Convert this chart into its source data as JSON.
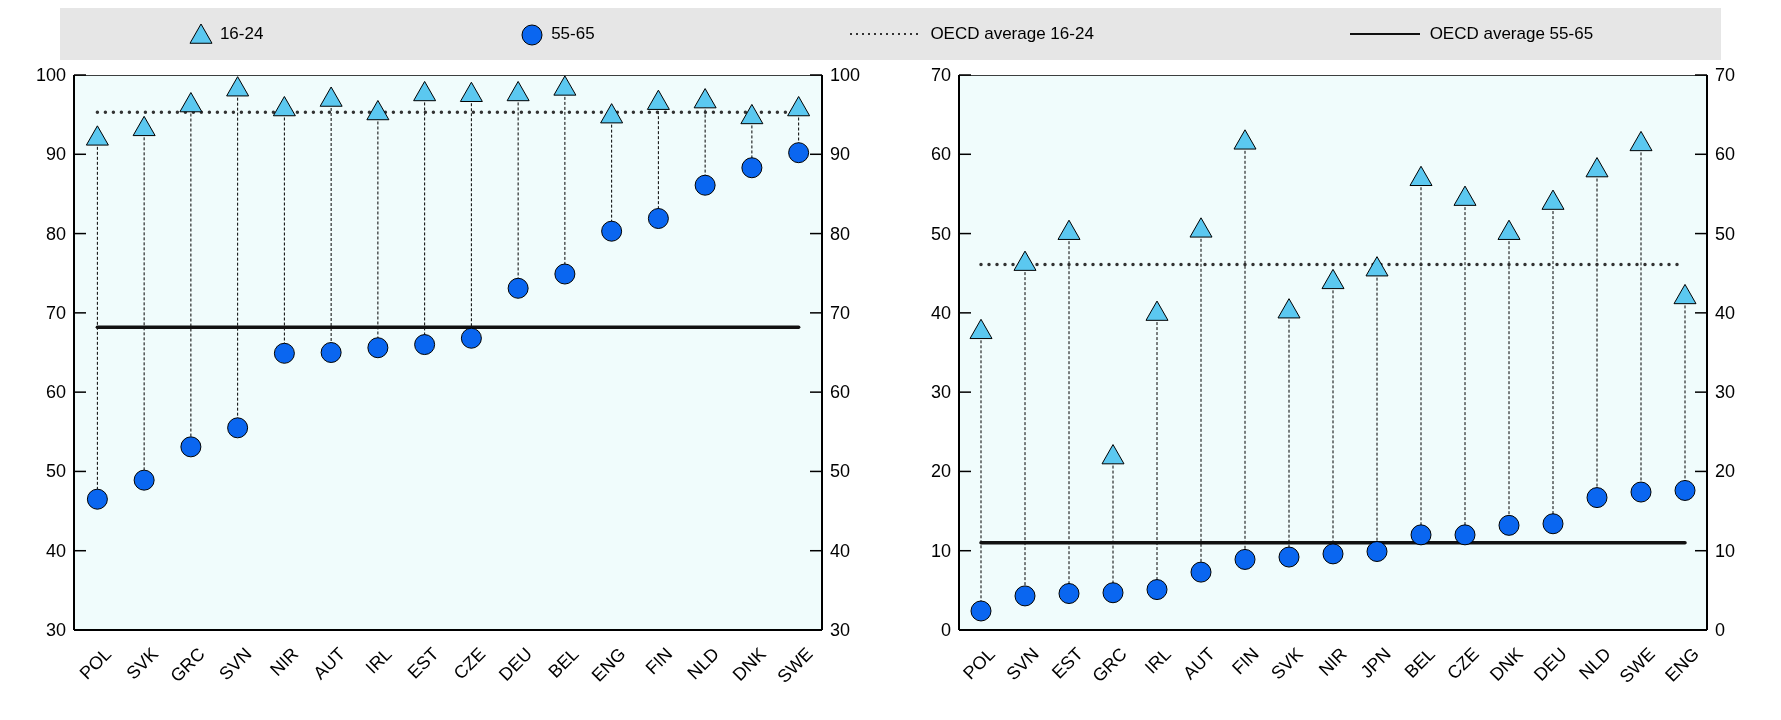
{
  "chart_data": [
    {
      "type": "scatter",
      "legend": "top",
      "grid": false,
      "categories": [
        "POL",
        "SVK",
        "GRC",
        "SVN",
        "NIR",
        "AUT",
        "IRL",
        "EST",
        "CZE",
        "DEU",
        "BEL",
        "ENG",
        "FIN",
        "NLD",
        "DNK",
        "SWE"
      ],
      "series": [
        {
          "name": "16-24",
          "color": "#5bc8f0",
          "marker": "triangle",
          "values": [
            92.2,
            93.4,
            96.4,
            98.4,
            95.9,
            97.1,
            95.4,
            97.8,
            97.7,
            97.8,
            98.5,
            95.0,
            96.7,
            96.9,
            94.9,
            95.9
          ]
        },
        {
          "name": "55-65",
          "color": "#0a66f0",
          "marker": "circle",
          "values": [
            46.5,
            48.9,
            53.1,
            55.5,
            64.9,
            65.0,
            65.6,
            66.0,
            66.8,
            73.1,
            74.9,
            80.3,
            81.9,
            86.1,
            88.3,
            90.2
          ]
        }
      ],
      "ref_lines": [
        {
          "axis": "y",
          "value": 95.3,
          "label": "OECD average 16-24",
          "color": "#333333",
          "line_style": "dotted"
        },
        {
          "axis": "y",
          "value": 68.2,
          "label": "OECD average 55-65",
          "color": "#111111",
          "line_style": "solid"
        }
      ],
      "ylim": [
        30,
        100
      ],
      "yticks": [
        30,
        40,
        50,
        60,
        70,
        80,
        90,
        100
      ],
      "y2lim": [
        30,
        100
      ],
      "y2ticks": [
        30,
        40,
        50,
        60,
        70,
        80,
        90,
        100
      ]
    },
    {
      "type": "scatter",
      "grid": false,
      "categories": [
        "POL",
        "SVN",
        "EST",
        "GRC",
        "IRL",
        "AUT",
        "FIN",
        "SVK",
        "NIR",
        "JPN",
        "BEL",
        "CZE",
        "DNK",
        "DEU",
        "NLD",
        "SWE",
        "ENG"
      ],
      "series": [
        {
          "color": "#5bc8f0",
          "marker": "triangle",
          "values": [
            37.8,
            46.4,
            50.3,
            22.0,
            40.1,
            50.6,
            61.7,
            40.4,
            44.1,
            45.7,
            57.1,
            54.6,
            50.3,
            54.1,
            58.2,
            61.5,
            42.2
          ]
        },
        {
          "color": "#0a66f0",
          "marker": "circle",
          "values": [
            2.4,
            4.3,
            4.6,
            4.7,
            5.1,
            7.3,
            8.9,
            9.2,
            9.6,
            9.9,
            12.0,
            12.0,
            13.2,
            13.4,
            16.7,
            17.4,
            17.6
          ]
        }
      ],
      "ref_lines": [
        {
          "axis": "y",
          "value": 46.1,
          "color": "#333333",
          "line_style": "dotted"
        },
        {
          "axis": "y",
          "value": 11.0,
          "color": "#111111",
          "line_style": "solid"
        }
      ],
      "ylim": [
        0,
        70
      ],
      "yticks": [
        0,
        10,
        20,
        30,
        40,
        50,
        60,
        70
      ],
      "y2lim": [
        0,
        70
      ],
      "y2ticks": [
        0,
        10,
        20,
        30,
        40,
        50,
        60,
        70
      ]
    }
  ]
}
